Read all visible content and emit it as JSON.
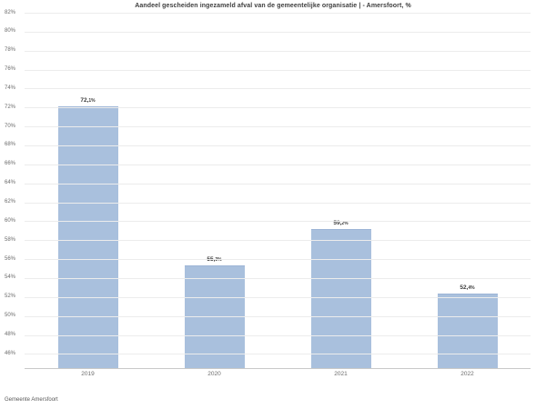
{
  "title": "Aandeel gescheiden ingezameld afval van de gemeentelijke organisatie | - Amersfoort, %",
  "footer": "Gemeente Amersfoort",
  "colors": {
    "bar_fill": "#a9c0dd",
    "bar_edge": "#9db5d6",
    "gridline": "#ececec",
    "axis_line": "#c9c9c9",
    "title_text": "#3d3d3d",
    "tick_text": "#6b6b6b",
    "value_label_text": "#3d3d3d",
    "footer_text": "#595959",
    "background": "#ffffff"
  },
  "chart_data": {
    "type": "bar",
    "title": "Aandeel gescheiden ingezameld afval van de gemeentelijke organisatie | - Amersfoort, %",
    "categories": [
      "2019",
      "2020",
      "2021",
      "2022"
    ],
    "values": [
      72.1,
      55.3,
      59.2,
      52.4
    ],
    "value_labels": [
      "72,1%",
      "55,3%",
      "59,2%",
      "52,4%"
    ],
    "xlabel": "",
    "ylabel": "",
    "y_tick_labels": [
      "82%",
      "80%",
      "78%",
      "76%",
      "74%",
      "72%",
      "70%",
      "68%",
      "66%",
      "64%",
      "62%",
      "60%",
      "58%",
      "56%",
      "54%",
      "52%",
      "50%",
      "48%",
      "46%"
    ],
    "y_tick_values": [
      82,
      80,
      78,
      76,
      74,
      72,
      70,
      68,
      66,
      64,
      62,
      60,
      58,
      56,
      54,
      52,
      50,
      48,
      46
    ],
    "ylim": [
      44.5,
      82
    ],
    "grid": true,
    "legend": false,
    "legend_position": "none"
  }
}
